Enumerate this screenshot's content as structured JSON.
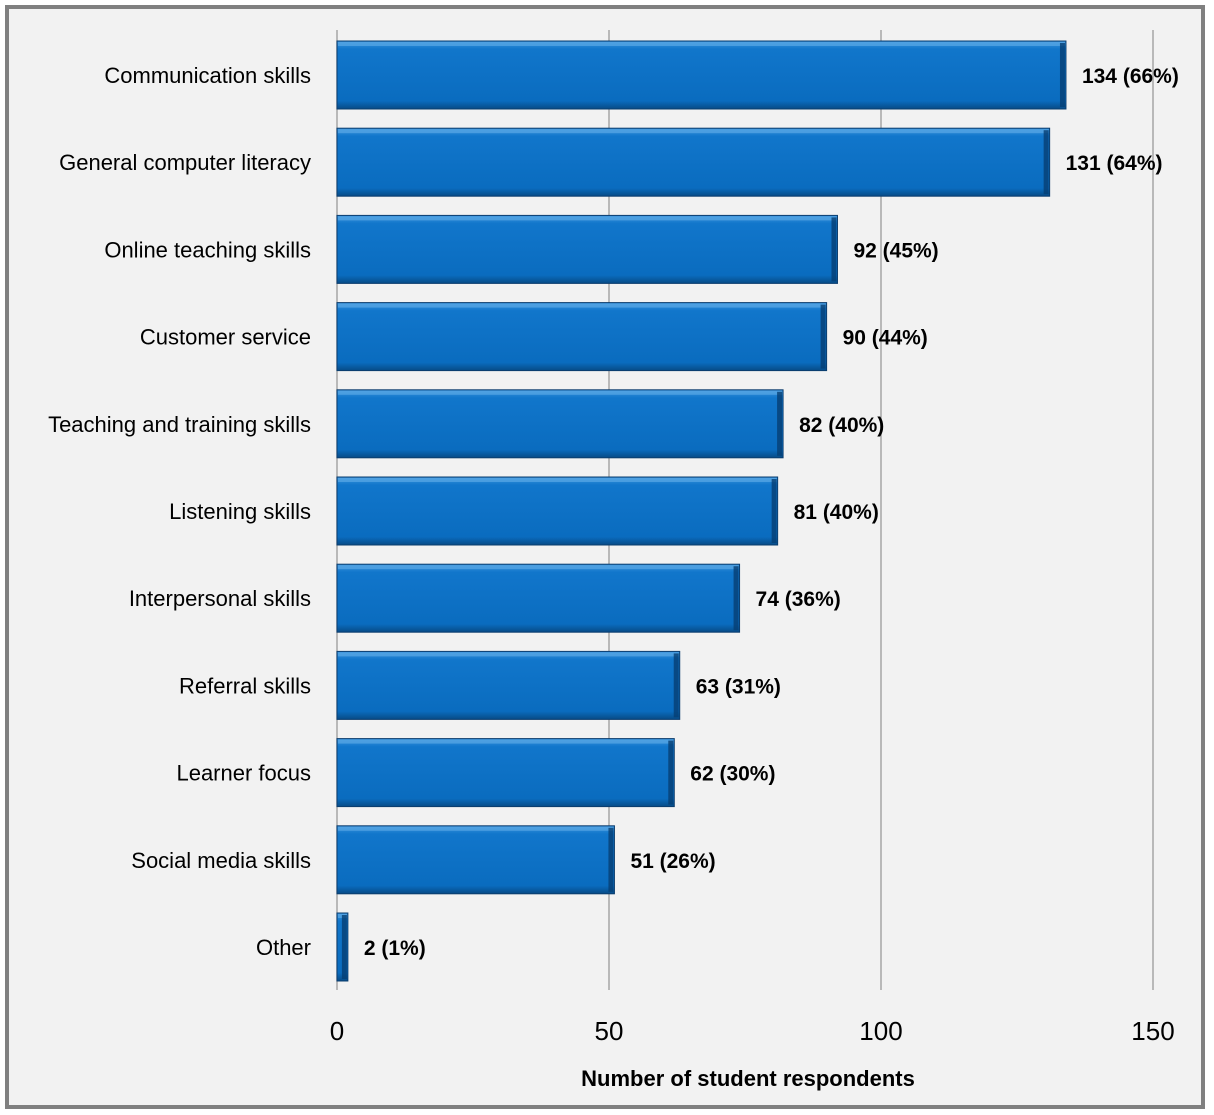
{
  "chart_data": {
    "type": "bar",
    "orientation": "horizontal",
    "categories": [
      "Communication skills",
      "General computer literacy",
      "Online teaching skills",
      "Customer service",
      "Teaching and training skills",
      "Listening skills",
      "Interpersonal skills",
      "Referral skills",
      "Learner focus",
      "Social media skills",
      "Other"
    ],
    "values": [
      134,
      131,
      92,
      90,
      82,
      81,
      74,
      63,
      62,
      51,
      2
    ],
    "data_labels": [
      "134 (66%)",
      "131 (64%)",
      "92 (45%)",
      "90 (44%)",
      "82 (40%)",
      "81 (40%)",
      "74 (36%)",
      "63 (31%)",
      "62 (30%)",
      "51 (26%)",
      "2 (1%)"
    ],
    "xlabel": "Number of student respondents",
    "ylabel": "",
    "xlim": [
      0,
      150
    ],
    "xticks": [
      "0",
      "50",
      "100",
      "150"
    ],
    "grid": "vertical",
    "bar_color": "#0a6fc2",
    "bar_edge_color": "#0b3d6e",
    "gridline_color": "#a6a6a6",
    "legend": "none"
  }
}
